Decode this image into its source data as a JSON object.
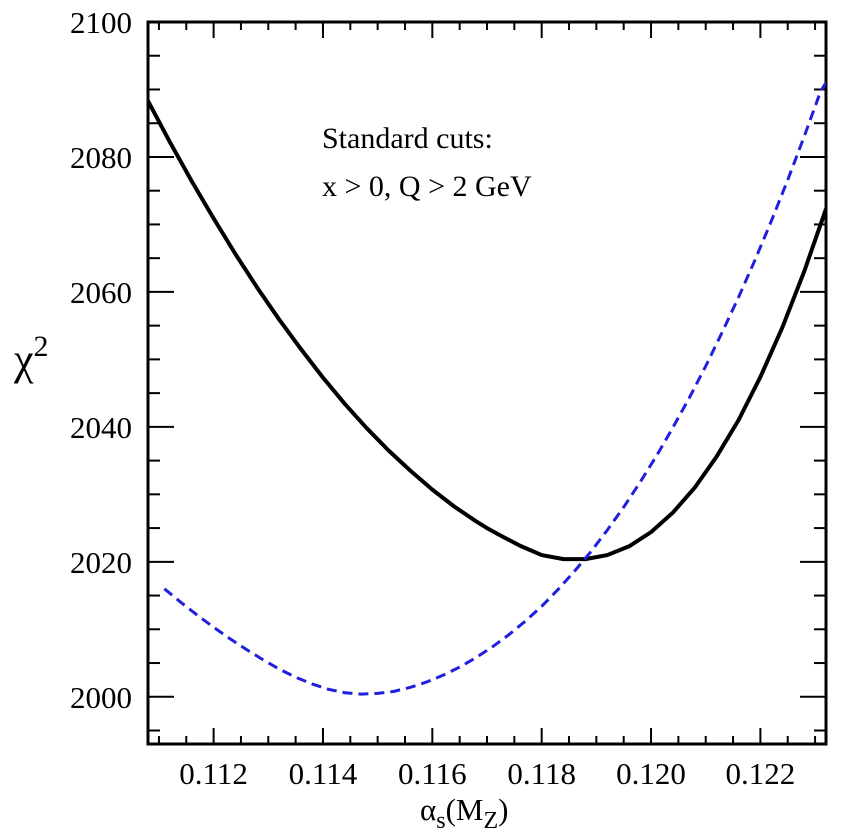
{
  "chart_data": {
    "type": "line",
    "xlim": [
      0.1108,
      0.1232
    ],
    "ylim": [
      1993,
      2100
    ],
    "x_ticks": [
      0.112,
      0.114,
      0.116,
      0.118,
      0.12,
      0.122
    ],
    "x_tick_labels": [
      "0.112",
      "0.114",
      "0.116",
      "0.118",
      "0.120",
      "0.122"
    ],
    "y_ticks": [
      2000,
      2020,
      2040,
      2060,
      2080,
      2100
    ],
    "y_tick_labels": [
      "2000",
      "2020",
      "2040",
      "2060",
      "2080",
      "2100"
    ],
    "ylabel": {
      "base": "χ",
      "sup": "2"
    },
    "xlabel": {
      "base": "α",
      "sub1": "s",
      "mid": "(M",
      "sub2": "Z",
      "end": ")"
    },
    "annotation": [
      "Standard cuts:",
      "x > 0,  Q > 2 GeV"
    ],
    "grid": false,
    "series": [
      {
        "style": "solid",
        "color": "#000000",
        "x": [
          0.1108,
          0.1112,
          0.1116,
          0.112,
          0.1124,
          0.1128,
          0.1132,
          0.1136,
          0.114,
          0.1144,
          0.1148,
          0.1152,
          0.1156,
          0.116,
          0.1164,
          0.1168,
          0.117,
          0.1172,
          0.1176,
          0.118,
          0.1184,
          0.1188,
          0.1192,
          0.1196,
          0.12,
          0.1204,
          0.1208,
          0.1212,
          0.1216,
          0.122,
          0.1224,
          0.1228,
          0.1232
        ],
        "y": [
          2088.3,
          2082.2,
          2076.4,
          2070.9,
          2065.6,
          2060.6,
          2055.9,
          2051.5,
          2047.3,
          2043.4,
          2039.8,
          2036.5,
          2033.5,
          2030.7,
          2028.2,
          2026.0,
          2025.0,
          2024.1,
          2022.4,
          2021.0,
          2020.4,
          2020.4,
          2021.0,
          2022.3,
          2024.4,
          2027.3,
          2031.0,
          2035.6,
          2041.0,
          2047.4,
          2054.7,
          2063.0,
          2072.3
        ]
      },
      {
        "style": "dashed",
        "color": "#1f1fdd",
        "x": [
          0.1111,
          0.1114,
          0.1117,
          0.112,
          0.1123,
          0.1126,
          0.1129,
          0.1132,
          0.1135,
          0.1138,
          0.1141,
          0.1144,
          0.1147,
          0.115,
          0.1153,
          0.1156,
          0.1159,
          0.1162,
          0.1165,
          0.1168,
          0.1171,
          0.1174,
          0.1177,
          0.118,
          0.1183,
          0.1186,
          0.1189,
          0.1192,
          0.1195,
          0.1198,
          0.1201,
          0.1204,
          0.1207,
          0.121,
          0.1213,
          0.1216,
          0.1219,
          0.1222,
          0.1225,
          0.1228,
          0.1231,
          0.1232
        ],
        "y": [
          2016.0,
          2014.0,
          2012.1,
          2010.3,
          2008.6,
          2007.0,
          2005.5,
          2004.1,
          2002.9,
          2001.9,
          2001.1,
          2000.6,
          2000.4,
          2000.5,
          2000.8,
          2001.4,
          2002.2,
          2003.2,
          2004.4,
          2005.8,
          2007.4,
          2009.2,
          2011.2,
          2013.4,
          2015.9,
          2018.6,
          2021.5,
          2024.7,
          2028.1,
          2031.8,
          2035.7,
          2039.9,
          2044.3,
          2049.0,
          2054.0,
          2059.2,
          2064.7,
          2070.5,
          2076.6,
          2083.0,
          2089.7,
          2091.0
        ]
      }
    ]
  }
}
